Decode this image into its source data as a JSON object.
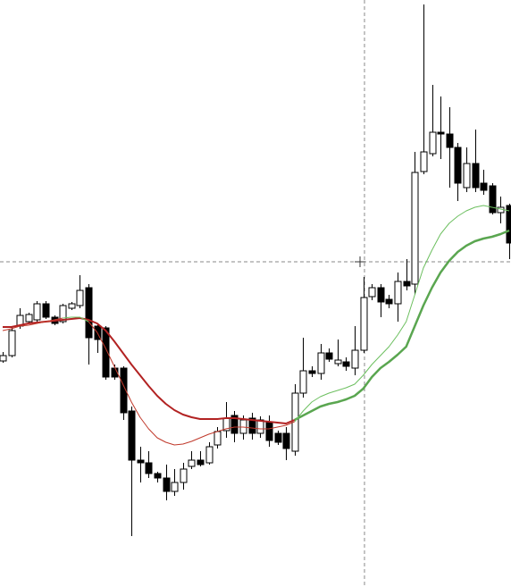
{
  "chart_data": {
    "type": "candlestick",
    "ylim": [
      0,
      657
    ],
    "up_color": "#ffffff",
    "down_color": "#000000",
    "outline_color": "#000000",
    "open": [
      253,
      259,
      292,
      297,
      299,
      317,
      302,
      297,
      312,
      315,
      335,
      292,
      290,
      245,
      245,
      197,
      142,
      139,
      127,
      122,
      107,
      117,
      135,
      142,
      139,
      159,
      175,
      192,
      172,
      189,
      172,
      185,
      172,
      172,
      152,
      217,
      242,
      239,
      262,
      250,
      252,
      245,
      265,
      325,
      335,
      322,
      317,
      342,
      339,
      465,
      485,
      509,
      507,
      492,
      447,
      474,
      452,
      449,
      419,
      427
    ],
    "high": [
      263,
      292,
      312,
      307,
      320,
      320,
      304,
      317,
      319,
      349,
      339,
      295,
      292,
      249,
      247,
      202,
      157,
      152,
      129,
      137,
      132,
      139,
      152,
      152,
      162,
      179,
      207,
      197,
      192,
      195,
      191,
      192,
      175,
      179,
      227,
      279,
      247,
      272,
      267,
      277,
      257,
      292,
      347,
      339,
      339,
      327,
      352,
      367,
      487,
      652,
      562,
      549,
      537,
      497,
      492,
      512,
      467,
      452,
      437,
      429
    ],
    "low": [
      251,
      257,
      289,
      295,
      295,
      300,
      293,
      295,
      310,
      312,
      249,
      262,
      232,
      232,
      187,
      57,
      117,
      122,
      117,
      97,
      102,
      109,
      132,
      135,
      137,
      155,
      167,
      162,
      165,
      165,
      167,
      157,
      159,
      142,
      147,
      212,
      235,
      232,
      252,
      247,
      242,
      237,
      262,
      321,
      302,
      312,
      297,
      332,
      327,
      462,
      482,
      479,
      447,
      432,
      442,
      442,
      439,
      417,
      407,
      367
    ],
    "close": [
      259,
      287,
      304,
      305,
      317,
      302,
      295,
      315,
      317,
      332,
      279,
      277,
      235,
      235,
      195,
      142,
      139,
      127,
      122,
      107,
      117,
      132,
      142,
      137,
      157,
      174,
      189,
      172,
      187,
      172,
      187,
      164,
      162,
      155,
      217,
      242,
      239,
      262,
      255,
      254,
      247,
      265,
      324,
      335,
      319,
      317,
      342,
      337,
      464,
      487,
      509,
      507,
      492,
      452,
      474,
      447,
      444,
      419,
      425,
      385
    ],
    "series": [
      {
        "color": "#b22222",
        "line_width": 2,
        "values": [
          291,
          291,
          293,
          295,
          296,
          297,
          298,
          299,
          300,
          301,
          299,
          295,
          287,
          275,
          262,
          249,
          237,
          225,
          214,
          205,
          198,
          193,
          190,
          188,
          188,
          188,
          189,
          189,
          188,
          187,
          186,
          185,
          184,
          183,
          187,
          null,
          null,
          null,
          null,
          null,
          null,
          null,
          null,
          null,
          null,
          null,
          null,
          null,
          null,
          null,
          null,
          null,
          null,
          null,
          null,
          null,
          null,
          null,
          null,
          null
        ]
      },
      {
        "color": "#5aa650",
        "line_width": 2.5,
        "values": [
          null,
          null,
          null,
          null,
          null,
          null,
          null,
          null,
          null,
          null,
          null,
          null,
          null,
          null,
          null,
          null,
          null,
          null,
          null,
          null,
          null,
          null,
          null,
          null,
          null,
          null,
          null,
          null,
          null,
          null,
          null,
          null,
          null,
          null,
          187,
          192,
          197,
          202,
          205,
          207,
          210,
          214,
          222,
          235,
          245,
          252,
          260,
          269,
          292,
          315,
          335,
          352,
          365,
          375,
          382,
          387,
          390,
          392,
          395,
          399
        ]
      },
      {
        "color": "#c0392b",
        "line_width": 1,
        "values": [
          287,
          289,
          292,
          293,
          295,
          297,
          299,
          301,
          null,
          null,
          297,
          285,
          267,
          247,
          227,
          207,
          190,
          177,
          167,
          162,
          159,
          160,
          163,
          167,
          171,
          174,
          177,
          179,
          179,
          178,
          177,
          177,
          179,
          181,
          185,
          null,
          null,
          null,
          null,
          null,
          null,
          null,
          null,
          null,
          null,
          null,
          null,
          null,
          null,
          null,
          null,
          null,
          null,
          null,
          null,
          null,
          null,
          null,
          null,
          null
        ]
      },
      {
        "color": "#6cbf5f",
        "line_width": 1,
        "values": [
          null,
          null,
          null,
          null,
          null,
          null,
          null,
          301,
          302,
          302,
          297,
          null,
          null,
          null,
          null,
          null,
          null,
          null,
          null,
          null,
          null,
          null,
          null,
          null,
          null,
          null,
          null,
          null,
          null,
          null,
          null,
          null,
          null,
          null,
          185,
          197,
          207,
          213,
          217,
          220,
          223,
          227,
          237,
          249,
          259,
          269,
          282,
          297,
          327,
          357,
          377,
          395,
          407,
          415,
          421,
          425,
          427,
          425,
          423,
          421
        ]
      }
    ]
  }
}
